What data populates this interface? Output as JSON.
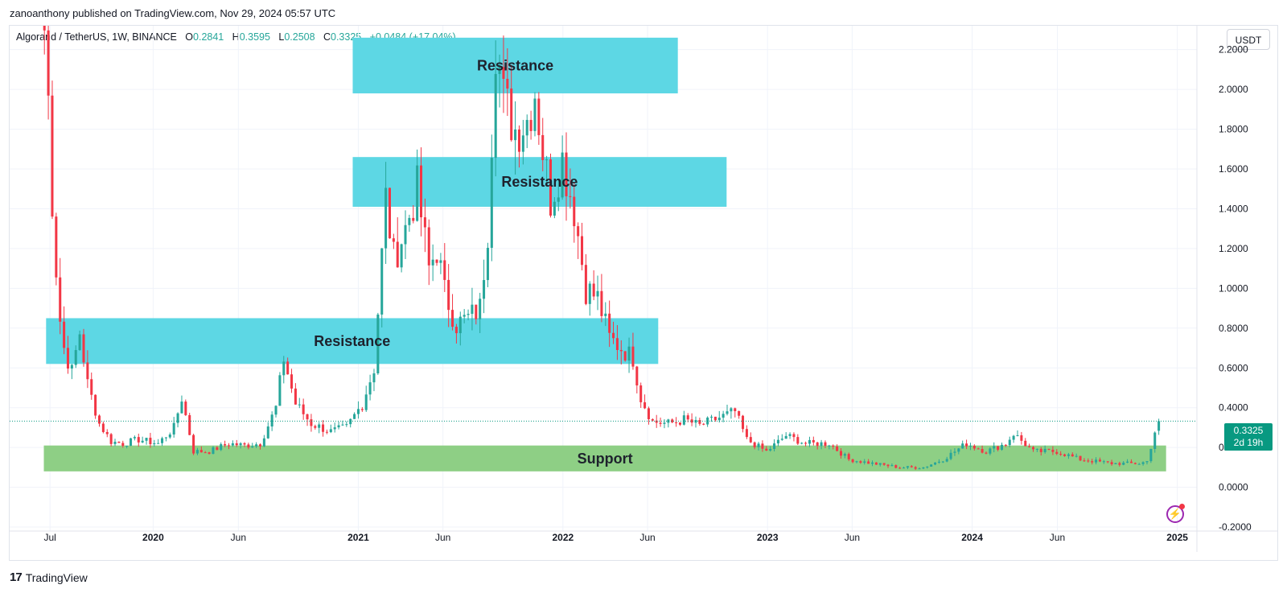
{
  "header": {
    "publisher_line": "zanoanthony published on TradingView.com, Nov 29, 2024 05:57 UTC"
  },
  "legend": {
    "symbol": "Algorand / TetherUS, 1W, BINANCE",
    "open_label": "O",
    "open": "0.2841",
    "high_label": "H",
    "high": "0.3595",
    "low_label": "L",
    "low": "0.2508",
    "close_label": "C",
    "close": "0.3325",
    "change": "+0.0484 (+17.04%)"
  },
  "currency_button": "USDT",
  "price_tag": {
    "price": "0.3325",
    "countdown": "2d 19h"
  },
  "brand": {
    "logo_text": "17",
    "name": "TradingView"
  },
  "colors": {
    "up": "#26a69a",
    "down": "#f23645",
    "resistance_zone": "#5dd7e4",
    "support_zone": "#8ecf85",
    "last_price": "#089981",
    "grid": "#f0f3fa"
  },
  "icons": {
    "snapshot": "lightning-bolt-icon"
  },
  "chart_data": {
    "type": "candlestick",
    "y_axis": {
      "ticks": [
        "2.2000",
        "2.0000",
        "1.8000",
        "1.6000",
        "1.4000",
        "1.2000",
        "1.0000",
        "0.8000",
        "0.6000",
        "0.4000",
        "0.2000",
        "0.0000",
        "-0.2000"
      ],
      "ylim": [
        -0.22,
        2.32
      ]
    },
    "x_axis": {
      "ticks": [
        {
          "label": "Jul",
          "date": "2019-07-01",
          "bold": false
        },
        {
          "label": "2020",
          "date": "2020-01-01",
          "bold": true
        },
        {
          "label": "Jun",
          "date": "2020-06-01",
          "bold": false
        },
        {
          "label": "2021",
          "date": "2021-01-01",
          "bold": true
        },
        {
          "label": "Jun",
          "date": "2021-06-01",
          "bold": false
        },
        {
          "label": "2022",
          "date": "2022-01-01",
          "bold": true
        },
        {
          "label": "Jun",
          "date": "2022-06-01",
          "bold": false
        },
        {
          "label": "2023",
          "date": "2023-01-01",
          "bold": true
        },
        {
          "label": "Jun",
          "date": "2023-06-01",
          "bold": false
        },
        {
          "label": "2024",
          "date": "2024-01-01",
          "bold": true
        },
        {
          "label": "Jun",
          "date": "2024-06-01",
          "bold": false
        },
        {
          "label": "2025",
          "date": "2025-01-01",
          "bold": true
        }
      ],
      "xlim": [
        "2019-04-20",
        "2025-02-05"
      ]
    },
    "zones": [
      {
        "label": "Resistance",
        "kind": "resistance",
        "from": "2020-12-22",
        "to": "2022-07-25",
        "y_low": 1.98,
        "y_high": 2.26
      },
      {
        "label": "Resistance",
        "kind": "resistance",
        "from": "2020-12-22",
        "to": "2022-10-20",
        "y_low": 1.41,
        "y_high": 1.66
      },
      {
        "label": "Resistance",
        "kind": "resistance",
        "from": "2019-06-24",
        "to": "2022-06-20",
        "y_low": 0.62,
        "y_high": 0.85
      },
      {
        "label": "Support",
        "kind": "support",
        "from": "2019-06-20",
        "to": "2024-12-12",
        "y_low": 0.08,
        "y_high": 0.21
      }
    ],
    "last_price": 0.3325,
    "anchors": [
      [
        "2019-06-21",
        2.3
      ],
      [
        "2019-06-28",
        1.95
      ],
      [
        "2019-07-05",
        1.45
      ],
      [
        "2019-07-12",
        1.1
      ],
      [
        "2019-07-19",
        0.84
      ],
      [
        "2019-07-26",
        0.7
      ],
      [
        "2019-08-09",
        0.58
      ],
      [
        "2019-08-23",
        0.78
      ],
      [
        "2019-09-06",
        0.52
      ],
      [
        "2019-09-27",
        0.32
      ],
      [
        "2019-10-18",
        0.23
      ],
      [
        "2019-11-08",
        0.22
      ],
      [
        "2019-12-06",
        0.24
      ],
      [
        "2020-01-10",
        0.22
      ],
      [
        "2020-02-07",
        0.3
      ],
      [
        "2020-02-21",
        0.45
      ],
      [
        "2020-03-13",
        0.18
      ],
      [
        "2020-04-10",
        0.18
      ],
      [
        "2020-05-15",
        0.22
      ],
      [
        "2020-06-12",
        0.21
      ],
      [
        "2020-07-10",
        0.22
      ],
      [
        "2020-08-07",
        0.4
      ],
      [
        "2020-08-21",
        0.65
      ],
      [
        "2020-09-11",
        0.42
      ],
      [
        "2020-10-09",
        0.32
      ],
      [
        "2020-11-13",
        0.28
      ],
      [
        "2020-12-11",
        0.3
      ],
      [
        "2021-01-08",
        0.42
      ],
      [
        "2021-01-29",
        0.6
      ],
      [
        "2021-02-19",
        1.45
      ],
      [
        "2021-03-05",
        1.15
      ],
      [
        "2021-03-26",
        1.3
      ],
      [
        "2021-04-16",
        1.5
      ],
      [
        "2021-05-07",
        1.1
      ],
      [
        "2021-05-21",
        1.2
      ],
      [
        "2021-06-04",
        0.98
      ],
      [
        "2021-06-25",
        0.82
      ],
      [
        "2021-07-16",
        0.85
      ],
      [
        "2021-08-06",
        0.9
      ],
      [
        "2021-08-20",
        1.3
      ],
      [
        "2021-09-03",
        2.25
      ],
      [
        "2021-09-17",
        1.95
      ],
      [
        "2021-10-08",
        1.8
      ],
      [
        "2021-10-29",
        1.85
      ],
      [
        "2021-11-12",
        2.0
      ],
      [
        "2021-11-26",
        1.7
      ],
      [
        "2021-12-10",
        1.45
      ],
      [
        "2021-12-31",
        1.65
      ],
      [
        "2022-01-21",
        1.4
      ],
      [
        "2022-02-11",
        1.0
      ],
      [
        "2022-03-04",
        0.95
      ],
      [
        "2022-03-25",
        0.75
      ],
      [
        "2022-04-15",
        0.7
      ],
      [
        "2022-05-06",
        0.65
      ],
      [
        "2022-05-20",
        0.45
      ],
      [
        "2022-06-10",
        0.33
      ],
      [
        "2022-07-08",
        0.32
      ],
      [
        "2022-08-05",
        0.34
      ],
      [
        "2022-09-02",
        0.31
      ],
      [
        "2022-10-07",
        0.35
      ],
      [
        "2022-11-04",
        0.38
      ],
      [
        "2022-11-25",
        0.24
      ],
      [
        "2022-12-30",
        0.18
      ],
      [
        "2023-02-03",
        0.26
      ],
      [
        "2023-03-10",
        0.22
      ],
      [
        "2023-04-21",
        0.22
      ],
      [
        "2023-05-26",
        0.14
      ],
      [
        "2023-07-07",
        0.12
      ],
      [
        "2023-08-25",
        0.1
      ],
      [
        "2023-10-06",
        0.1
      ],
      [
        "2023-11-10",
        0.14
      ],
      [
        "2023-12-22",
        0.22
      ],
      [
        "2024-01-26",
        0.18
      ],
      [
        "2024-03-01",
        0.22
      ],
      [
        "2024-03-15",
        0.27
      ],
      [
        "2024-04-19",
        0.18
      ],
      [
        "2024-05-31",
        0.18
      ],
      [
        "2024-07-12",
        0.14
      ],
      [
        "2024-09-06",
        0.12
      ],
      [
        "2024-10-25",
        0.12
      ],
      [
        "2024-11-08",
        0.13
      ],
      [
        "2024-11-22",
        0.28
      ],
      [
        "2024-11-29",
        0.3325
      ]
    ]
  }
}
